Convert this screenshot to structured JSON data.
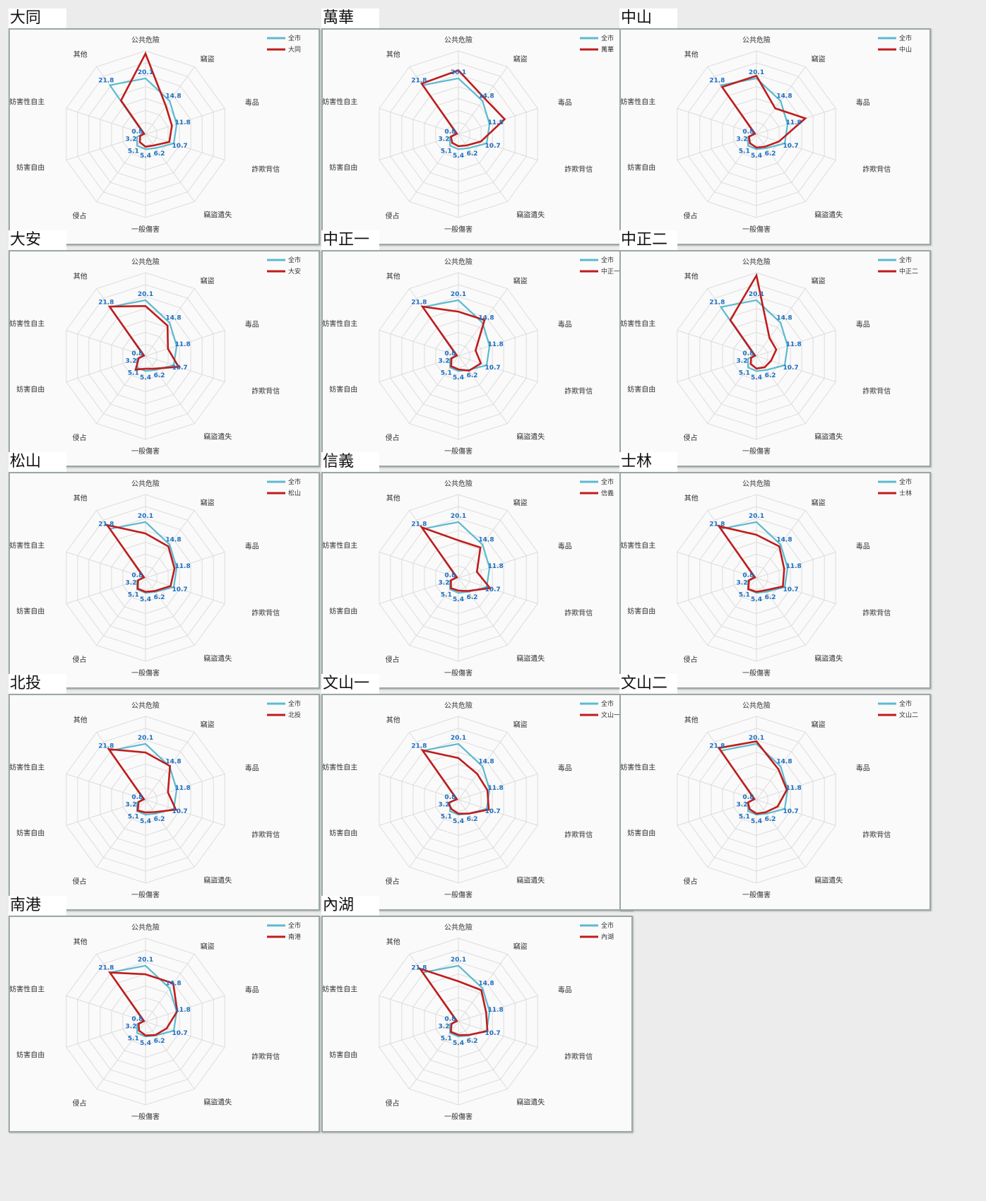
{
  "colors": {
    "city_series": "#5bbad0",
    "district_series": "#c01c1c",
    "value_labels": "#1f6fc0",
    "grid": "#dcdcdc"
  },
  "axes": [
    "公共危險",
    "竊盜",
    "毒品",
    "詐欺背信",
    "竊盜遺失",
    "一般傷害",
    "侵占",
    "妨害自由",
    "妨害性自主",
    "其他"
  ],
  "legend_city": "全市",
  "city_values": [
    20.1,
    14.8,
    11.8,
    10.7,
    6.2,
    5.4,
    5.1,
    3.2,
    0.8,
    21.8
  ],
  "value_labels": [
    "20.1",
    "14.8",
    "11.8",
    "10.7",
    "6.2",
    "5.4",
    "5.1",
    "3.2",
    "0.8",
    "21.8"
  ],
  "chart_data": [
    {
      "type": "radar",
      "district": "大同",
      "series": [
        {
          "name": "全市",
          "values": [
            20.1,
            14.8,
            11.8,
            10.7,
            6.2,
            5.4,
            5.1,
            3.2,
            0.8,
            21.8
          ]
        },
        {
          "name": "大同",
          "values": [
            29.0,
            12.5,
            10.0,
            9.0,
            5.0,
            4.5,
            3.5,
            2.0,
            0.5,
            15.0
          ]
        }
      ]
    },
    {
      "type": "radar",
      "district": "萬華",
      "series": [
        {
          "name": "全市",
          "values": [
            20.1,
            14.8,
            11.8,
            10.7,
            6.2,
            5.4,
            5.1,
            3.2,
            0.8,
            21.8
          ]
        },
        {
          "name": "萬華",
          "values": [
            23.0,
            16.0,
            17.5,
            8.5,
            5.0,
            4.3,
            3.8,
            2.8,
            0.6,
            22.5
          ]
        }
      ]
    },
    {
      "type": "radar",
      "district": "中山",
      "series": [
        {
          "name": "全市",
          "values": [
            20.1,
            14.8,
            11.8,
            10.7,
            6.2,
            5.4,
            5.1,
            3.2,
            0.8,
            21.8
          ]
        },
        {
          "name": "中山",
          "values": [
            21.0,
            11.5,
            18.5,
            8.5,
            5.5,
            4.8,
            4.0,
            2.8,
            0.6,
            21.0
          ]
        }
      ]
    },
    {
      "type": "radar",
      "district": "大安",
      "series": [
        {
          "name": "全市",
          "values": [
            20.1,
            14.8,
            11.8,
            10.7,
            6.2,
            5.4,
            5.1,
            3.2,
            0.8,
            21.8
          ]
        },
        {
          "name": "大安",
          "values": [
            18.0,
            13.5,
            8.5,
            12.5,
            5.6,
            4.6,
            6.0,
            2.6,
            0.6,
            22.0
          ]
        }
      ]
    },
    {
      "type": "radar",
      "district": "中正一",
      "series": [
        {
          "name": "全市",
          "values": [
            20.1,
            14.8,
            11.8,
            10.7,
            6.2,
            5.4,
            5.1,
            3.2,
            0.8,
            21.8
          ]
        },
        {
          "name": "中正一",
          "values": [
            16.0,
            16.0,
            6.5,
            8.5,
            6.5,
            4.8,
            4.5,
            2.6,
            0.6,
            22.0
          ]
        }
      ]
    },
    {
      "type": "radar",
      "district": "中正二",
      "series": [
        {
          "name": "全市",
          "values": [
            20.1,
            14.8,
            11.8,
            10.7,
            6.2,
            5.4,
            5.1,
            3.2,
            0.8,
            21.8
          ]
        },
        {
          "name": "中正二",
          "values": [
            29.0,
            8.0,
            7.5,
            5.5,
            5.0,
            4.5,
            3.5,
            2.0,
            0.5,
            16.0
          ]
        }
      ]
    },
    {
      "type": "radar",
      "district": "松山",
      "series": [
        {
          "name": "全市",
          "values": [
            20.1,
            14.8,
            11.8,
            10.7,
            6.2,
            5.4,
            5.1,
            3.2,
            0.8,
            21.8
          ]
        },
        {
          "name": "松山",
          "values": [
            16.0,
            14.0,
            11.0,
            9.5,
            5.8,
            5.0,
            4.8,
            2.8,
            0.6,
            23.5
          ]
        }
      ]
    },
    {
      "type": "radar",
      "district": "信義",
      "series": [
        {
          "name": "全市",
          "values": [
            20.1,
            14.8,
            11.8,
            10.7,
            6.2,
            5.4,
            5.1,
            3.2,
            0.8,
            21.8
          ]
        },
        {
          "name": "信義",
          "values": [
            13.5,
            13.5,
            7.0,
            12.0,
            5.8,
            4.6,
            4.6,
            2.8,
            0.6,
            22.5
          ]
        }
      ]
    },
    {
      "type": "radar",
      "district": "士林",
      "series": [
        {
          "name": "全市",
          "values": [
            20.1,
            14.8,
            11.8,
            10.7,
            6.2,
            5.4,
            5.1,
            3.2,
            0.8,
            21.8
          ]
        },
        {
          "name": "士林",
          "values": [
            15.5,
            14.0,
            10.5,
            10.0,
            5.5,
            5.0,
            5.0,
            2.8,
            0.6,
            23.0
          ]
        }
      ]
    },
    {
      "type": "radar",
      "district": "北投",
      "series": [
        {
          "name": "全市",
          "values": [
            20.1,
            14.8,
            11.8,
            10.7,
            6.2,
            5.4,
            5.1,
            3.2,
            0.8,
            21.8
          ]
        },
        {
          "name": "北投",
          "values": [
            17.0,
            15.0,
            8.5,
            11.5,
            5.5,
            4.6,
            4.8,
            2.6,
            0.6,
            22.5
          ]
        }
      ]
    },
    {
      "type": "radar",
      "district": "文山一",
      "series": [
        {
          "name": "全市",
          "values": [
            20.1,
            14.8,
            11.8,
            10.7,
            6.2,
            5.4,
            5.1,
            3.2,
            0.8,
            21.8
          ]
        },
        {
          "name": "文山一",
          "values": [
            15.0,
            11.5,
            11.0,
            11.5,
            6.2,
            5.0,
            4.2,
            3.8,
            0.6,
            22.0
          ]
        }
      ]
    },
    {
      "type": "radar",
      "district": "文山二",
      "series": [
        {
          "name": "全市",
          "values": [
            20.1,
            14.8,
            11.8,
            10.7,
            6.2,
            5.4,
            5.1,
            3.2,
            0.8,
            21.8
          ]
        },
        {
          "name": "文山二",
          "values": [
            21.0,
            13.5,
            11.5,
            8.0,
            5.6,
            5.0,
            4.2,
            3.2,
            0.8,
            23.0
          ]
        }
      ]
    },
    {
      "type": "radar",
      "district": "南港",
      "series": [
        {
          "name": "全市",
          "values": [
            20.1,
            14.8,
            11.8,
            10.7,
            6.2,
            5.4,
            5.1,
            3.2,
            0.8,
            21.8
          ]
        },
        {
          "name": "南港",
          "values": [
            17.0,
            17.0,
            12.0,
            8.0,
            6.0,
            5.0,
            4.0,
            2.6,
            0.6,
            21.8
          ]
        }
      ]
    },
    {
      "type": "radar",
      "district": "內湖",
      "series": [
        {
          "name": "全市",
          "values": [
            20.1,
            14.8,
            11.8,
            10.7,
            6.2,
            5.4,
            5.1,
            3.2,
            0.8,
            21.8
          ]
        },
        {
          "name": "內湖",
          "values": [
            14.5,
            14.0,
            10.5,
            11.0,
            6.0,
            4.8,
            4.6,
            2.6,
            0.6,
            23.5
          ]
        }
      ]
    }
  ]
}
